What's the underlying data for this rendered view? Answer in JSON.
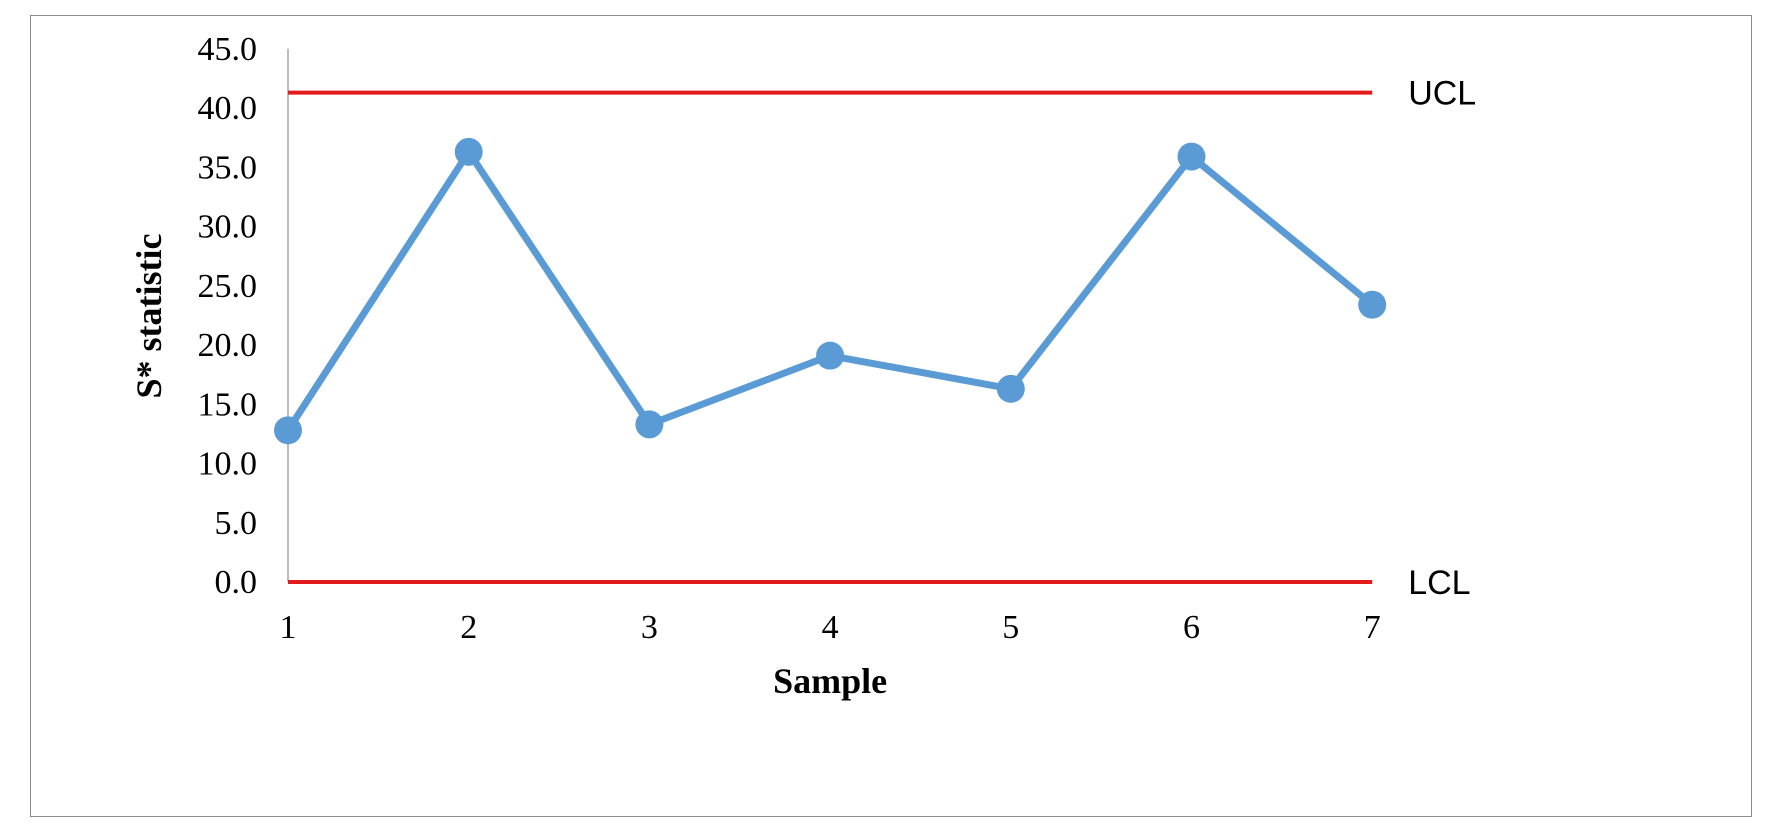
{
  "chart_data": {
    "type": "line",
    "title": "",
    "xlabel": "Sample",
    "ylabel": "S* statistic",
    "x": [
      1,
      2,
      3,
      4,
      5,
      6,
      7
    ],
    "x_tick_labels": [
      "1",
      "2",
      "3",
      "4",
      "5",
      "6",
      "7"
    ],
    "y_tick_labels": [
      "0.0",
      "5.0",
      "10.0",
      "15.0",
      "20.0",
      "25.0",
      "30.0",
      "35.0",
      "40.0",
      "45.0"
    ],
    "ylim": [
      0,
      45
    ],
    "grid": false,
    "legend": "none",
    "series": [
      {
        "values": [
          12.8,
          36.3,
          13.3,
          19.1,
          16.3,
          35.9,
          23.4
        ],
        "color": "#5b9bd5"
      }
    ],
    "control_limits": [
      {
        "label": "UCL",
        "value": 41.3,
        "color": "#e31a1c"
      },
      {
        "label": "LCL",
        "value": 0.0,
        "color": "#e31a1c"
      }
    ]
  }
}
